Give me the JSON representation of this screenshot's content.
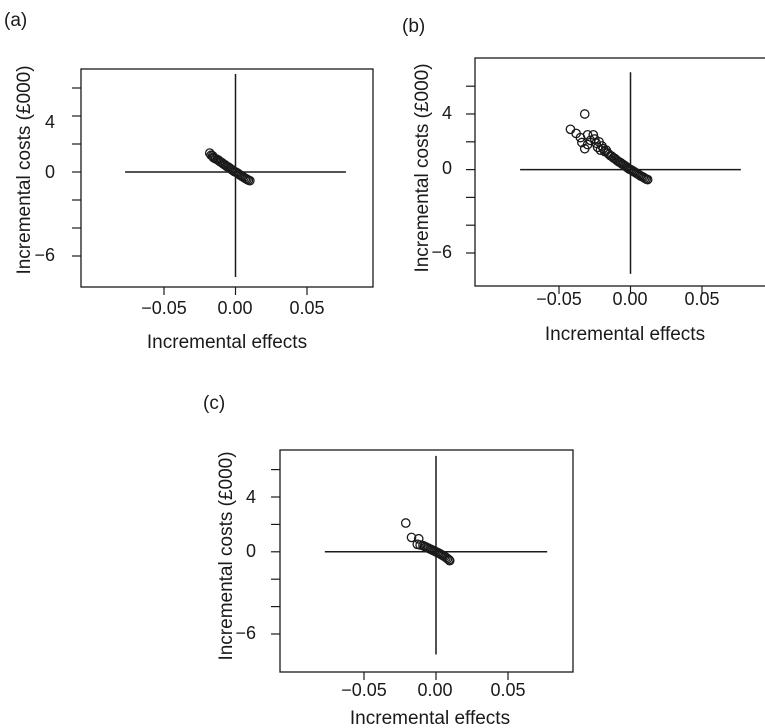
{
  "chart_data": [
    {
      "panel_label": "(a)",
      "type": "scatter",
      "xlabel": "Incremental effects",
      "ylabel": "Incremental costs (£000)",
      "xlim": [
        -0.08,
        0.08
      ],
      "ylim": [
        -7.5,
        7
      ],
      "xticks": [
        -0.05,
        0.0,
        0.05
      ],
      "xtick_labels": [
        "−0.05",
        "0.00",
        "0.05"
      ],
      "yticks": [
        4,
        0,
        -6
      ],
      "ytick_labels": [
        "4",
        "0",
        "−6"
      ],
      "yminor_ticks": [
        6,
        2,
        -2,
        -4
      ],
      "crosshair": {
        "x": 0,
        "y": 0
      },
      "series": [
        {
          "points": [
            [
              -0.018,
              1.35
            ],
            [
              -0.017,
              1.2
            ],
            [
              -0.016,
              1.15
            ],
            [
              -0.0155,
              1.05
            ],
            [
              -0.015,
              1.0
            ],
            [
              -0.014,
              0.95
            ],
            [
              -0.013,
              0.9
            ],
            [
              -0.012,
              0.85
            ],
            [
              -0.011,
              0.75
            ],
            [
              -0.01,
              0.7
            ],
            [
              -0.009,
              0.62
            ],
            [
              -0.008,
              0.55
            ],
            [
              -0.007,
              0.48
            ],
            [
              -0.006,
              0.4
            ],
            [
              -0.005,
              0.35
            ],
            [
              -0.004,
              0.27
            ],
            [
              -0.003,
              0.2
            ],
            [
              -0.002,
              0.12
            ],
            [
              -0.001,
              0.05
            ],
            [
              0.0,
              0.0
            ],
            [
              0.001,
              -0.05
            ],
            [
              0.002,
              -0.12
            ],
            [
              0.003,
              -0.2
            ],
            [
              0.004,
              -0.27
            ],
            [
              0.005,
              -0.33
            ],
            [
              0.006,
              -0.4
            ],
            [
              0.007,
              -0.46
            ],
            [
              0.008,
              -0.52
            ],
            [
              0.009,
              -0.58
            ],
            [
              0.01,
              -0.62
            ]
          ]
        }
      ]
    },
    {
      "panel_label": "(b)",
      "type": "scatter",
      "xlabel": "Incremental effects",
      "ylabel": "Incremental costs (£000)",
      "xlim": [
        -0.08,
        0.08
      ],
      "ylim": [
        -7.5,
        7
      ],
      "xticks": [
        -0.05,
        0.0,
        0.05
      ],
      "xtick_labels": [
        "−0.05",
        "0.00",
        "0.05"
      ],
      "yticks": [
        4,
        0,
        -6
      ],
      "ytick_labels": [
        "4",
        "0",
        "−6"
      ],
      "yminor_ticks": [
        6,
        2,
        -2,
        -4
      ],
      "crosshair": {
        "x": 0,
        "y": 0
      },
      "series": [
        {
          "points": [
            [
              -0.032,
              4.0
            ],
            [
              -0.042,
              2.9
            ],
            [
              -0.038,
              2.6
            ],
            [
              -0.035,
              2.3
            ],
            [
              -0.03,
              2.5
            ],
            [
              -0.034,
              1.95
            ],
            [
              -0.032,
              1.5
            ],
            [
              -0.03,
              1.8
            ],
            [
              -0.028,
              2.1
            ],
            [
              -0.026,
              2.5
            ],
            [
              -0.025,
              2.2
            ],
            [
              -0.024,
              1.9
            ],
            [
              -0.023,
              1.6
            ],
            [
              -0.022,
              2.0
            ],
            [
              -0.021,
              1.4
            ],
            [
              -0.02,
              1.7
            ],
            [
              -0.019,
              1.5
            ],
            [
              -0.018,
              1.3
            ],
            [
              -0.017,
              1.4
            ],
            [
              -0.016,
              1.2
            ],
            [
              -0.015,
              1.1
            ],
            [
              -0.014,
              1.0
            ],
            [
              -0.013,
              0.95
            ],
            [
              -0.012,
              0.85
            ],
            [
              -0.011,
              0.8
            ],
            [
              -0.01,
              0.7
            ],
            [
              -0.009,
              0.62
            ],
            [
              -0.008,
              0.55
            ],
            [
              -0.007,
              0.5
            ],
            [
              -0.006,
              0.42
            ],
            [
              -0.005,
              0.35
            ],
            [
              -0.004,
              0.28
            ],
            [
              -0.003,
              0.2
            ],
            [
              -0.002,
              0.13
            ],
            [
              -0.001,
              0.05
            ],
            [
              0.0,
              0.0
            ],
            [
              0.001,
              -0.05
            ],
            [
              0.002,
              -0.12
            ],
            [
              0.003,
              -0.18
            ],
            [
              0.004,
              -0.25
            ],
            [
              0.005,
              -0.3
            ],
            [
              0.006,
              -0.38
            ],
            [
              0.007,
              -0.45
            ],
            [
              0.008,
              -0.5
            ],
            [
              0.009,
              -0.55
            ],
            [
              0.01,
              -0.62
            ],
            [
              0.011,
              -0.68
            ],
            [
              0.012,
              -0.72
            ]
          ]
        }
      ]
    },
    {
      "panel_label": "(c)",
      "type": "scatter",
      "xlabel": "Incremental effects",
      "ylabel": "Incremental costs (£000)",
      "xlim": [
        -0.08,
        0.08
      ],
      "ylim": [
        -7.5,
        7
      ],
      "xticks": [
        -0.05,
        0.0,
        0.05
      ],
      "xtick_labels": [
        "−0.05",
        "0.00",
        "0.05"
      ],
      "yticks": [
        4,
        0,
        -6
      ],
      "ytick_labels": [
        "4",
        "0",
        "−6"
      ],
      "yminor_ticks": [
        6,
        2,
        -2,
        -4
      ],
      "crosshair": {
        "x": 0,
        "y": 0
      },
      "series": [
        {
          "points": [
            [
              -0.021,
              2.1
            ],
            [
              -0.017,
              1.05
            ],
            [
              -0.012,
              0.95
            ],
            [
              -0.013,
              0.55
            ],
            [
              -0.011,
              0.5
            ],
            [
              -0.009,
              0.45
            ],
            [
              -0.008,
              0.4
            ],
            [
              -0.007,
              0.35
            ],
            [
              -0.006,
              0.3
            ],
            [
              -0.005,
              0.25
            ],
            [
              -0.004,
              0.2
            ],
            [
              -0.003,
              0.15
            ],
            [
              -0.002,
              0.1
            ],
            [
              -0.001,
              0.05
            ],
            [
              0.0,
              0.0
            ],
            [
              0.001,
              -0.05
            ],
            [
              0.002,
              -0.1
            ],
            [
              0.003,
              -0.16
            ],
            [
              0.004,
              -0.22
            ],
            [
              0.005,
              -0.28
            ],
            [
              0.006,
              -0.35
            ],
            [
              0.007,
              -0.42
            ],
            [
              0.008,
              -0.5
            ],
            [
              0.009,
              -0.58
            ],
            [
              0.0095,
              -0.65
            ]
          ]
        }
      ]
    }
  ]
}
